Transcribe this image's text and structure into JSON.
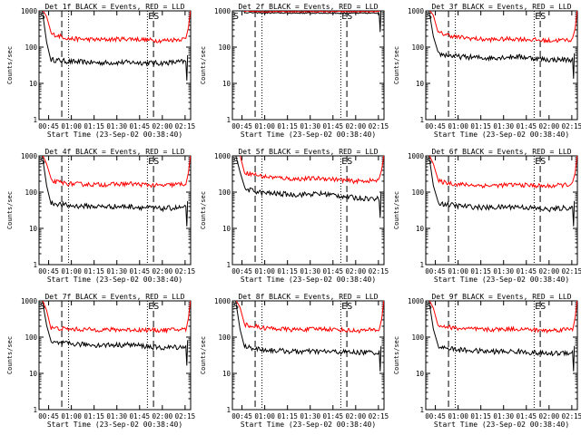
{
  "time_axis_label": "Start Time (23-Sep-02 00:38:40)",
  "y_axis_label": "Counts/sec",
  "x_ticks": [
    "00:45",
    "01:00",
    "01:15",
    "01:30",
    "01:45",
    "02:00",
    "02:15"
  ],
  "y_ticks": [
    "1000",
    "100",
    "10",
    "1"
  ],
  "corner_labels": {
    "start": "S",
    "end": "ES"
  },
  "colors": {
    "events": "#000000",
    "lld": "#ff0000"
  },
  "chart_data": [
    {
      "type": "line",
      "title": "Det 1f BLACK = Events, RED = LLD",
      "ylim": [
        1,
        1000
      ],
      "yscale": "log",
      "xlabel": "Start Time (23-Sep-02 00:38:40)",
      "ylabel": "Counts/sec",
      "x_minutes_from_start": [
        8,
        20,
        40,
        60,
        80,
        97
      ],
      "series": [
        {
          "name": "Events",
          "values": [
            45,
            40,
            37,
            38,
            36,
            40
          ]
        },
        {
          "name": "LLD",
          "values": [
            230,
            170,
            160,
            170,
            150,
            170
          ]
        }
      ]
    },
    {
      "type": "line",
      "title": "Det 2f BLACK = Events, RED = LLD",
      "ylim": [
        1,
        1000
      ],
      "yscale": "log",
      "xlabel": "Start Time (23-Sep-02 00:38:40)",
      "ylabel": "Counts/sec",
      "x_minutes_from_start": [
        8,
        20,
        40,
        60,
        80,
        97
      ],
      "series": [
        {
          "name": "Events",
          "values": [
            900,
            880,
            870,
            870,
            860,
            870
          ]
        },
        {
          "name": "LLD",
          "values": [
            1000,
            950,
            950,
            950,
            950,
            950
          ]
        }
      ]
    },
    {
      "type": "line",
      "title": "Det 3f BLACK = Events, RED = LLD",
      "ylim": [
        1,
        1000
      ],
      "yscale": "log",
      "xlabel": "Start Time (23-Sep-02 00:38:40)",
      "ylabel": "Counts/sec",
      "x_minutes_from_start": [
        8,
        20,
        40,
        60,
        80,
        97
      ],
      "series": [
        {
          "name": "Events",
          "values": [
            65,
            55,
            50,
            55,
            45,
            45
          ]
        },
        {
          "name": "LLD",
          "values": [
            250,
            190,
            160,
            170,
            150,
            160
          ]
        }
      ]
    },
    {
      "type": "line",
      "title": "Det 4f BLACK = Events, RED = LLD",
      "ylim": [
        1,
        1000
      ],
      "yscale": "log",
      "xlabel": "Start Time (23-Sep-02 00:38:40)",
      "ylabel": "Counts/sec",
      "x_minutes_from_start": [
        8,
        20,
        40,
        60,
        80,
        97
      ],
      "series": [
        {
          "name": "Events",
          "values": [
            50,
            42,
            40,
            40,
            35,
            38
          ]
        },
        {
          "name": "LLD",
          "values": [
            200,
            170,
            160,
            170,
            150,
            170
          ]
        }
      ]
    },
    {
      "type": "line",
      "title": "Det 5f BLACK = Events, RED = LLD",
      "ylim": [
        1,
        1000
      ],
      "yscale": "log",
      "xlabel": "Start Time (23-Sep-02 00:38:40)",
      "ylabel": "Counts/sec",
      "x_minutes_from_start": [
        8,
        20,
        40,
        60,
        80,
        97
      ],
      "series": [
        {
          "name": "Events",
          "values": [
            120,
            95,
            85,
            90,
            70,
            65
          ]
        },
        {
          "name": "LLD",
          "values": [
            350,
            270,
            230,
            240,
            200,
            210
          ]
        }
      ]
    },
    {
      "type": "line",
      "title": "Det 6f BLACK = Events, RED = LLD",
      "ylim": [
        1,
        1000
      ],
      "yscale": "log",
      "xlabel": "Start Time (23-Sep-02 00:38:40)",
      "ylabel": "Counts/sec",
      "x_minutes_from_start": [
        8,
        20,
        40,
        60,
        80,
        97
      ],
      "series": [
        {
          "name": "Events",
          "values": [
            50,
            42,
            37,
            40,
            33,
            38
          ]
        },
        {
          "name": "LLD",
          "values": [
            200,
            165,
            150,
            160,
            145,
            165
          ]
        }
      ]
    },
    {
      "type": "line",
      "title": "Det 7f BLACK = Events, RED = LLD",
      "ylim": [
        1,
        1000
      ],
      "yscale": "log",
      "xlabel": "Start Time (23-Sep-02 00:38:40)",
      "ylabel": "Counts/sec",
      "x_minutes_from_start": [
        8,
        20,
        40,
        60,
        80,
        97
      ],
      "series": [
        {
          "name": "Events",
          "values": [
            70,
            65,
            60,
            62,
            50,
            55
          ]
        },
        {
          "name": "LLD",
          "values": [
            180,
            165,
            160,
            160,
            155,
            165
          ]
        }
      ]
    },
    {
      "type": "line",
      "title": "Det 8f BLACK = Events, RED = LLD",
      "ylim": [
        1,
        1000
      ],
      "yscale": "log",
      "xlabel": "Start Time (23-Sep-02 00:38:40)",
      "ylabel": "Counts/sec",
      "x_minutes_from_start": [
        8,
        20,
        40,
        60,
        80,
        97
      ],
      "series": [
        {
          "name": "Events",
          "values": [
            55,
            45,
            40,
            40,
            38,
            38
          ]
        },
        {
          "name": "LLD",
          "values": [
            220,
            180,
            160,
            170,
            150,
            160
          ]
        }
      ]
    },
    {
      "type": "line",
      "title": "Det 9f BLACK = Events, RED = LLD",
      "ylim": [
        1,
        1000
      ],
      "yscale": "log",
      "xlabel": "Start Time (23-Sep-02 00:38:40)",
      "ylabel": "Counts/sec",
      "x_minutes_from_start": [
        8,
        20,
        40,
        60,
        80,
        97
      ],
      "series": [
        {
          "name": "Events",
          "values": [
            55,
            45,
            40,
            40,
            35,
            38
          ]
        },
        {
          "name": "LLD",
          "values": [
            210,
            175,
            160,
            170,
            150,
            170
          ]
        }
      ]
    }
  ]
}
